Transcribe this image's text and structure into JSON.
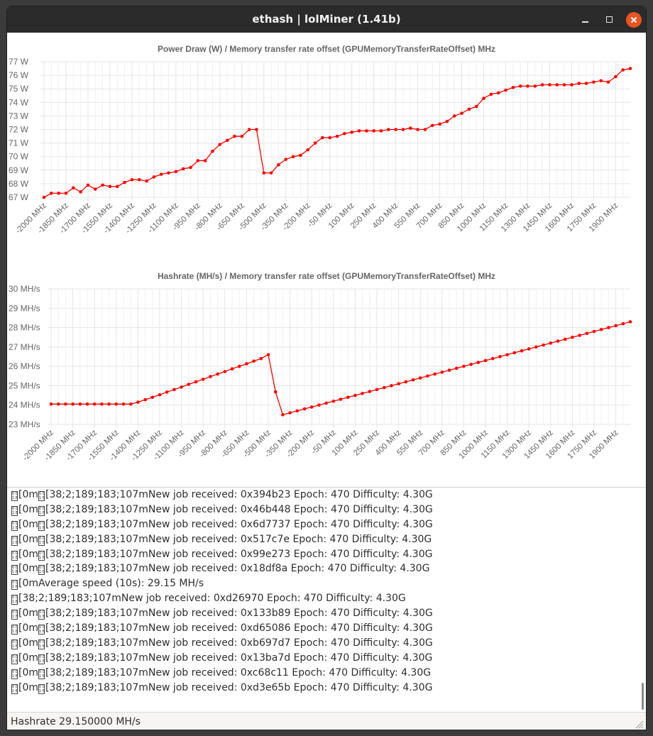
{
  "window": {
    "title": "ethash | lolMiner (1.41b)"
  },
  "colors": {
    "series": "#ff0000",
    "grid": "#e5e5e5",
    "titlebar": "#2b2b2b",
    "close": "#e95420"
  },
  "chart_data": [
    {
      "type": "line",
      "title": "Power Draw (W) / Memory transfer rate offset (GPUMemoryTransferRateOffset) MHz",
      "x": [
        -2000,
        -1950,
        -1900,
        -1850,
        -1800,
        -1750,
        -1700,
        -1650,
        -1600,
        -1550,
        -1500,
        -1450,
        -1400,
        -1350,
        -1300,
        -1250,
        -1200,
        -1150,
        -1100,
        -1050,
        -1000,
        -950,
        -900,
        -850,
        -800,
        -750,
        -700,
        -650,
        -600,
        -550,
        -500,
        -450,
        -400,
        -350,
        -300,
        -250,
        -200,
        -150,
        -100,
        -50,
        0,
        50,
        100,
        150,
        200,
        250,
        300,
        350,
        400,
        450,
        500,
        550,
        600,
        650,
        700,
        750,
        800,
        850,
        900,
        950,
        1000,
        1050,
        1100,
        1150,
        1200,
        1250,
        1300,
        1350,
        1400,
        1450,
        1500,
        1550,
        1600,
        1650,
        1700,
        1750,
        1800,
        1850,
        1900,
        1950,
        2000
      ],
      "y": [
        67.0,
        67.3,
        67.3,
        67.3,
        67.7,
        67.4,
        67.9,
        67.6,
        67.9,
        67.8,
        67.8,
        68.1,
        68.3,
        68.3,
        68.2,
        68.5,
        68.7,
        68.8,
        68.9,
        69.1,
        69.2,
        69.7,
        69.7,
        70.4,
        70.9,
        71.2,
        71.5,
        71.5,
        72.0,
        72.0,
        68.8,
        68.8,
        69.4,
        69.8,
        70.0,
        70.1,
        70.5,
        71.0,
        71.4,
        71.4,
        71.5,
        71.7,
        71.8,
        71.9,
        71.9,
        71.9,
        71.9,
        72.0,
        72.0,
        72.0,
        72.1,
        72.0,
        72.0,
        72.3,
        72.4,
        72.6,
        73.0,
        73.2,
        73.5,
        73.7,
        74.3,
        74.6,
        74.7,
        74.9,
        75.1,
        75.2,
        75.2,
        75.2,
        75.3,
        75.3,
        75.3,
        75.3,
        75.3,
        75.4,
        75.4,
        75.5,
        75.6,
        75.5,
        75.9,
        76.4,
        76.5
      ],
      "series": [
        {
          "name": "",
          "color": "#ff0000"
        }
      ],
      "xticks": [
        "-2000 MHz",
        "-1850 MHz",
        "-1700 MHz",
        "-1550 MHz",
        "-1400 MHz",
        "-1250 MHz",
        "-1100 MHz",
        "-950 MHz",
        "-800 MHz",
        "-650 MHz",
        "-500 MHz",
        "-350 MHz",
        "-200 MHz",
        "-50 MHz",
        "100 MHz",
        "250 MHz",
        "400 MHz",
        "550 MHz",
        "700 MHz",
        "850 MHz",
        "1000 MHz",
        "1150 MHz",
        "1300 MHz",
        "1450 MHz",
        "1600 MHz",
        "1750 MHz",
        "1900 MHz"
      ],
      "yticks": [
        "67 W",
        "68 W",
        "69 W",
        "70 W",
        "71 W",
        "72 W",
        "73 W",
        "74 W",
        "75 W",
        "76 W",
        "77 W"
      ],
      "ylim": [
        67,
        77
      ],
      "grid": true,
      "legend": "none"
    },
    {
      "type": "line",
      "title": "Hashrate (MH/s) / Memory transfer rate offset (GPUMemoryTransferRateOffset) MHz",
      "x": [
        -2000,
        -1950,
        -1900,
        -1850,
        -1800,
        -1750,
        -1700,
        -1650,
        -1600,
        -1550,
        -1500,
        -1450,
        -1400,
        -1350,
        -1300,
        -1250,
        -1200,
        -1150,
        -1100,
        -1050,
        -1000,
        -950,
        -900,
        -850,
        -800,
        -750,
        -700,
        -650,
        -600,
        -550,
        -500,
        -450,
        -400,
        -350,
        -300,
        -250,
        -200,
        -150,
        -100,
        -50,
        0,
        50,
        100,
        150,
        200,
        250,
        300,
        350,
        400,
        450,
        500,
        550,
        600,
        650,
        700,
        750,
        800,
        850,
        900,
        950,
        1000,
        1050,
        1100,
        1150,
        1200,
        1250,
        1300,
        1350,
        1400,
        1450,
        1500,
        1550,
        1600,
        1650,
        1700,
        1750,
        1800,
        1850,
        1900,
        1950,
        2000
      ],
      "y": [
        24.05,
        24.05,
        24.05,
        24.05,
        24.05,
        24.05,
        24.05,
        24.05,
        24.05,
        24.05,
        24.05,
        24.05,
        24.15,
        24.28,
        24.4,
        24.53,
        24.67,
        24.8,
        24.93,
        25.07,
        25.2,
        25.33,
        25.47,
        25.6,
        25.73,
        25.87,
        26.0,
        26.13,
        26.27,
        26.4,
        26.6,
        24.68,
        23.5,
        23.6,
        23.7,
        23.8,
        23.9,
        24.0,
        24.1,
        24.2,
        24.3,
        24.4,
        24.5,
        24.6,
        24.7,
        24.8,
        24.9,
        25.0,
        25.1,
        25.2,
        25.3,
        25.4,
        25.5,
        25.6,
        25.7,
        25.8,
        25.9,
        26.0,
        26.1,
        26.2,
        26.3,
        26.4,
        26.5,
        26.6,
        26.7,
        26.8,
        26.9,
        27.0,
        27.1,
        27.2,
        27.3,
        27.4,
        27.5,
        27.6,
        27.7,
        27.8,
        27.9,
        28.0,
        28.1,
        28.2,
        28.3
      ],
      "series": [
        {
          "name": "",
          "color": "#ff0000"
        }
      ],
      "xticks": [
        "-2000 MHz",
        "-1850 MHz",
        "-1700 MHz",
        "-1550 MHz",
        "-1400 MHz",
        "-1250 MHz",
        "-1100 MHz",
        "-950 MHz",
        "-800 MHz",
        "-650 MHz",
        "-500 MHz",
        "-350 MHz",
        "-200 MHz",
        "-50 MHz",
        "100 MHz",
        "250 MHz",
        "400 MHz",
        "550 MHz",
        "700 MHz",
        "850 MHz",
        "1000 MHz",
        "1150 MHz",
        "1300 MHz",
        "1450 MHz",
        "1600 MHz",
        "1750 MHz",
        "1900 MHz"
      ],
      "yticks": [
        "23 MH/s",
        "24 MH/s",
        "25 MH/s",
        "26 MH/s",
        "27 MH/s",
        "28 MH/s",
        "29 MH/s",
        "30 MH/s"
      ],
      "ylim": [
        23,
        30
      ],
      "grid": true,
      "legend": "none"
    }
  ],
  "log": {
    "lines": [
      {
        "esc": 2,
        "text": "[0m",
        "text2": "[38;2;189;183;107mNew job received: 0x394b23 Epoch: 470 Difficulty: 4.30G"
      },
      {
        "esc": 2,
        "text": "[0m",
        "text2": "[38;2;189;183;107mNew job received: 0x46b448 Epoch: 470 Difficulty: 4.30G"
      },
      {
        "esc": 2,
        "text": "[0m",
        "text2": "[38;2;189;183;107mNew job received: 0x6d7737 Epoch: 470 Difficulty: 4.30G"
      },
      {
        "esc": 2,
        "text": "[0m",
        "text2": "[38;2;189;183;107mNew job received: 0x517c7e Epoch: 470 Difficulty: 4.30G"
      },
      {
        "esc": 2,
        "text": "[0m",
        "text2": "[38;2;189;183;107mNew job received: 0x99e273 Epoch: 470 Difficulty: 4.30G"
      },
      {
        "esc": 2,
        "text": "[0m",
        "text2": "[38;2;189;183;107mNew job received: 0x18df8a Epoch: 470 Difficulty: 4.30G"
      },
      {
        "esc": 1,
        "text": "[0mAverage speed (10s): 29.15 MH/s",
        "text2": ""
      },
      {
        "esc": 1,
        "text": "[38;2;189;183;107mNew job received: 0xd26970 Epoch: 470 Difficulty: 4.30G",
        "text2": ""
      },
      {
        "esc": 2,
        "text": "[0m",
        "text2": "[38;2;189;183;107mNew job received: 0x133b89 Epoch: 470 Difficulty: 4.30G"
      },
      {
        "esc": 2,
        "text": "[0m",
        "text2": "[38;2;189;183;107mNew job received: 0xd65086 Epoch: 470 Difficulty: 4.30G"
      },
      {
        "esc": 2,
        "text": "[0m",
        "text2": "[38;2;189;183;107mNew job received: 0xb697d7 Epoch: 470 Difficulty: 4.30G"
      },
      {
        "esc": 2,
        "text": "[0m",
        "text2": "[38;2;189;183;107mNew job received: 0x13ba7d Epoch: 470 Difficulty: 4.30G"
      },
      {
        "esc": 2,
        "text": "[0m",
        "text2": "[38;2;189;183;107mNew job received: 0xc68c11 Epoch: 470 Difficulty: 4.30G"
      },
      {
        "esc": 2,
        "text": "[0m",
        "text2": "[38;2;189;183;107mNew job received: 0xd3e65b Epoch: 470 Difficulty: 4.30G"
      }
    ]
  },
  "status": {
    "text": "Hashrate 29.150000 MH/s"
  }
}
